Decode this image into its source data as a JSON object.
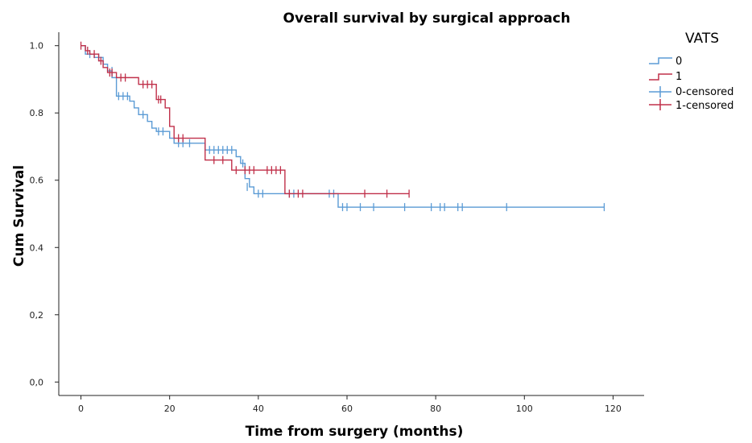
{
  "chart_data": {
    "type": "line",
    "subtype": "kaplan-meier",
    "title": "Overall survival by surgical approach",
    "xlabel": "Time from surgery (months)",
    "ylabel": "Cum Survival",
    "xlim": [
      -5,
      127
    ],
    "ylim": [
      -0.04,
      1.04
    ],
    "x_ticks": [
      {
        "value": 0,
        "label": "0"
      },
      {
        "value": 20,
        "label": "20"
      },
      {
        "value": 40,
        "label": "40"
      },
      {
        "value": 60,
        "label": "60"
      },
      {
        "value": 80,
        "label": "80"
      },
      {
        "value": 100,
        "label": "100"
      },
      {
        "value": 120,
        "label": "120"
      }
    ],
    "y_ticks": [
      {
        "value": 0.0,
        "label": "0,0"
      },
      {
        "value": 0.2,
        "label": "0,2"
      },
      {
        "value": 0.4,
        "label": "0.4"
      },
      {
        "value": 0.6,
        "label": "0.6"
      },
      {
        "value": 0.8,
        "label": "0.8"
      },
      {
        "value": 1.0,
        "label": "1.0"
      }
    ],
    "grid": false,
    "legend": {
      "title": "VATS",
      "position": "right",
      "entries": [
        "0",
        "1",
        "0-censored",
        "1-censored"
      ]
    },
    "colors": {
      "0": "#5b9bd5",
      "1": "#c0304a"
    },
    "series": [
      {
        "name": "0",
        "steps": [
          [
            0,
            1.0
          ],
          [
            1,
            0.975
          ],
          [
            3,
            0.965
          ],
          [
            5,
            0.945
          ],
          [
            6,
            0.925
          ],
          [
            7,
            0.905
          ],
          [
            8,
            0.85
          ],
          [
            11,
            0.835
          ],
          [
            12,
            0.815
          ],
          [
            13,
            0.795
          ],
          [
            15,
            0.775
          ],
          [
            16,
            0.755
          ],
          [
            17,
            0.745
          ],
          [
            20,
            0.725
          ],
          [
            21,
            0.71
          ],
          [
            28,
            0.69
          ],
          [
            35,
            0.67
          ],
          [
            36,
            0.65
          ],
          [
            37,
            0.605
          ],
          [
            38,
            0.58
          ],
          [
            39,
            0.56
          ],
          [
            58,
            0.52
          ],
          [
            118,
            0.52
          ]
        ],
        "censored": [
          [
            2,
            0.975
          ],
          [
            4,
            0.965
          ],
          [
            7,
            0.925
          ],
          [
            8.5,
            0.85
          ],
          [
            9.5,
            0.85
          ],
          [
            10.5,
            0.85
          ],
          [
            14,
            0.795
          ],
          [
            17.5,
            0.745
          ],
          [
            18.5,
            0.745
          ],
          [
            22,
            0.71
          ],
          [
            23,
            0.71
          ],
          [
            24.5,
            0.71
          ],
          [
            29,
            0.69
          ],
          [
            30,
            0.69
          ],
          [
            31,
            0.69
          ],
          [
            32,
            0.69
          ],
          [
            33,
            0.69
          ],
          [
            34,
            0.69
          ],
          [
            36.5,
            0.65
          ],
          [
            37.5,
            0.58
          ],
          [
            40,
            0.56
          ],
          [
            41,
            0.56
          ],
          [
            47,
            0.56
          ],
          [
            48,
            0.56
          ],
          [
            56,
            0.56
          ],
          [
            57,
            0.56
          ],
          [
            59,
            0.52
          ],
          [
            60,
            0.52
          ],
          [
            63,
            0.52
          ],
          [
            66,
            0.52
          ],
          [
            73,
            0.52
          ],
          [
            79,
            0.52
          ],
          [
            81,
            0.52
          ],
          [
            82,
            0.52
          ],
          [
            85,
            0.52
          ],
          [
            86,
            0.52
          ],
          [
            96,
            0.52
          ],
          [
            118,
            0.52
          ]
        ]
      },
      {
        "name": "1",
        "steps": [
          [
            0,
            1.0
          ],
          [
            1,
            0.985
          ],
          [
            2,
            0.975
          ],
          [
            4,
            0.955
          ],
          [
            5,
            0.935
          ],
          [
            6,
            0.92
          ],
          [
            8,
            0.905
          ],
          [
            13,
            0.885
          ],
          [
            17,
            0.84
          ],
          [
            19,
            0.815
          ],
          [
            20,
            0.76
          ],
          [
            21,
            0.725
          ],
          [
            28,
            0.66
          ],
          [
            34,
            0.63
          ],
          [
            46,
            0.56
          ],
          [
            74,
            0.56
          ]
        ],
        "censored": [
          [
            0,
            1.0
          ],
          [
            1.5,
            0.985
          ],
          [
            3,
            0.975
          ],
          [
            4.5,
            0.955
          ],
          [
            6.5,
            0.92
          ],
          [
            7,
            0.92
          ],
          [
            9,
            0.905
          ],
          [
            10,
            0.905
          ],
          [
            14,
            0.885
          ],
          [
            15,
            0.885
          ],
          [
            16,
            0.885
          ],
          [
            17.5,
            0.84
          ],
          [
            18,
            0.84
          ],
          [
            22,
            0.725
          ],
          [
            23,
            0.725
          ],
          [
            30,
            0.66
          ],
          [
            32,
            0.66
          ],
          [
            35,
            0.63
          ],
          [
            37,
            0.63
          ],
          [
            38,
            0.63
          ],
          [
            39,
            0.63
          ],
          [
            42,
            0.63
          ],
          [
            43,
            0.63
          ],
          [
            44,
            0.63
          ],
          [
            45,
            0.63
          ],
          [
            47,
            0.56
          ],
          [
            49,
            0.56
          ],
          [
            50,
            0.56
          ],
          [
            64,
            0.56
          ],
          [
            69,
            0.56
          ],
          [
            74,
            0.56
          ]
        ]
      }
    ]
  }
}
